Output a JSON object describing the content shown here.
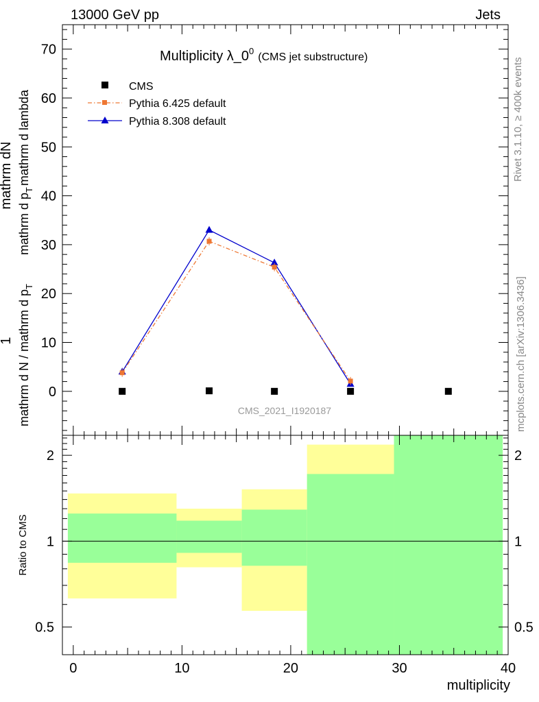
{
  "header": {
    "energy_label": "13000 GeV pp",
    "process_label": "Jets"
  },
  "side_text": {
    "rivet": "Rivet 3.1.10, ≥ 400k events",
    "mcplots": "mcplots.cern.ch [arXiv:1306.3436]"
  },
  "colors": {
    "cms": "#000000",
    "pythia6": "#ee7733",
    "pythia8": "#0000cc",
    "band_yellow": "#ffff99",
    "band_green": "#99ff99",
    "watermark": "#999999",
    "side_text": "#888888"
  },
  "chart_data": [
    {
      "type": "line",
      "title_main": "Multiplicity λ_0",
      "title_sup": "0",
      "title_sub": "(CMS jet substructure)",
      "watermark": "CMS_2021_I1920187",
      "ylabel_top": "1",
      "ylabel_top_den": "mathrm d N / mathrm d p",
      "ylabel_top_den_sub": "T",
      "ylabel_right_num": "mathrm dN",
      "ylabel_right_den": "mathrm d p",
      "ylabel_right_den_sub": "T",
      "ylabel_right_den_tail": "mathrm d lambda",
      "ylim": [
        -9,
        75
      ],
      "xlim": [
        -1,
        40
      ],
      "yticks": [
        0,
        10,
        20,
        30,
        40,
        50,
        60,
        70
      ],
      "legend_position": "top-left",
      "series": [
        {
          "name": "CMS",
          "marker": "square",
          "x": [
            4.5,
            12.5,
            18.5,
            25.5,
            34.5
          ],
          "y": [
            0,
            0.1,
            0,
            0,
            0
          ]
        },
        {
          "name": "Pythia 6.425 default",
          "marker": "square-small",
          "line": "dash-dot",
          "x": [
            4.5,
            12.5,
            18.5,
            25.5
          ],
          "y": [
            3.8,
            30.7,
            25.4,
            2.1
          ]
        },
        {
          "name": "Pythia 8.308 default",
          "marker": "triangle",
          "line": "solid",
          "x": [
            4.5,
            12.5,
            18.5,
            25.5
          ],
          "y": [
            4.0,
            33.0,
            26.3,
            1.5
          ]
        }
      ]
    },
    {
      "type": "area",
      "ylabel": "Ratio to CMS",
      "xlabel": "multiplicity",
      "scale": "log",
      "ylim": [
        0.4,
        2.35
      ],
      "xlim": [
        -1,
        40
      ],
      "xticks": [
        0,
        10,
        20,
        30,
        40
      ],
      "yticks": [
        0.5,
        1,
        2
      ],
      "reference_line": 1,
      "bins": [
        {
          "x_low": -0.5,
          "x_high": 9.5,
          "yellow": [
            0.63,
            1.47
          ],
          "green": [
            0.84,
            1.25
          ]
        },
        {
          "x_low": 9.5,
          "x_high": 15.5,
          "yellow": [
            0.81,
            1.3
          ],
          "green": [
            0.91,
            1.18
          ]
        },
        {
          "x_low": 15.5,
          "x_high": 21.5,
          "yellow": [
            0.57,
            1.52
          ],
          "green": [
            0.82,
            1.29
          ]
        },
        {
          "x_low": 21.5,
          "x_high": 29.5,
          "yellow": [
            0.4,
            2.18
          ],
          "green": [
            0.4,
            1.72
          ]
        },
        {
          "x_low": 29.5,
          "x_high": 39.5,
          "yellow": [
            0.4,
            2.35
          ],
          "green": [
            0.4,
            2.35
          ]
        }
      ]
    }
  ]
}
